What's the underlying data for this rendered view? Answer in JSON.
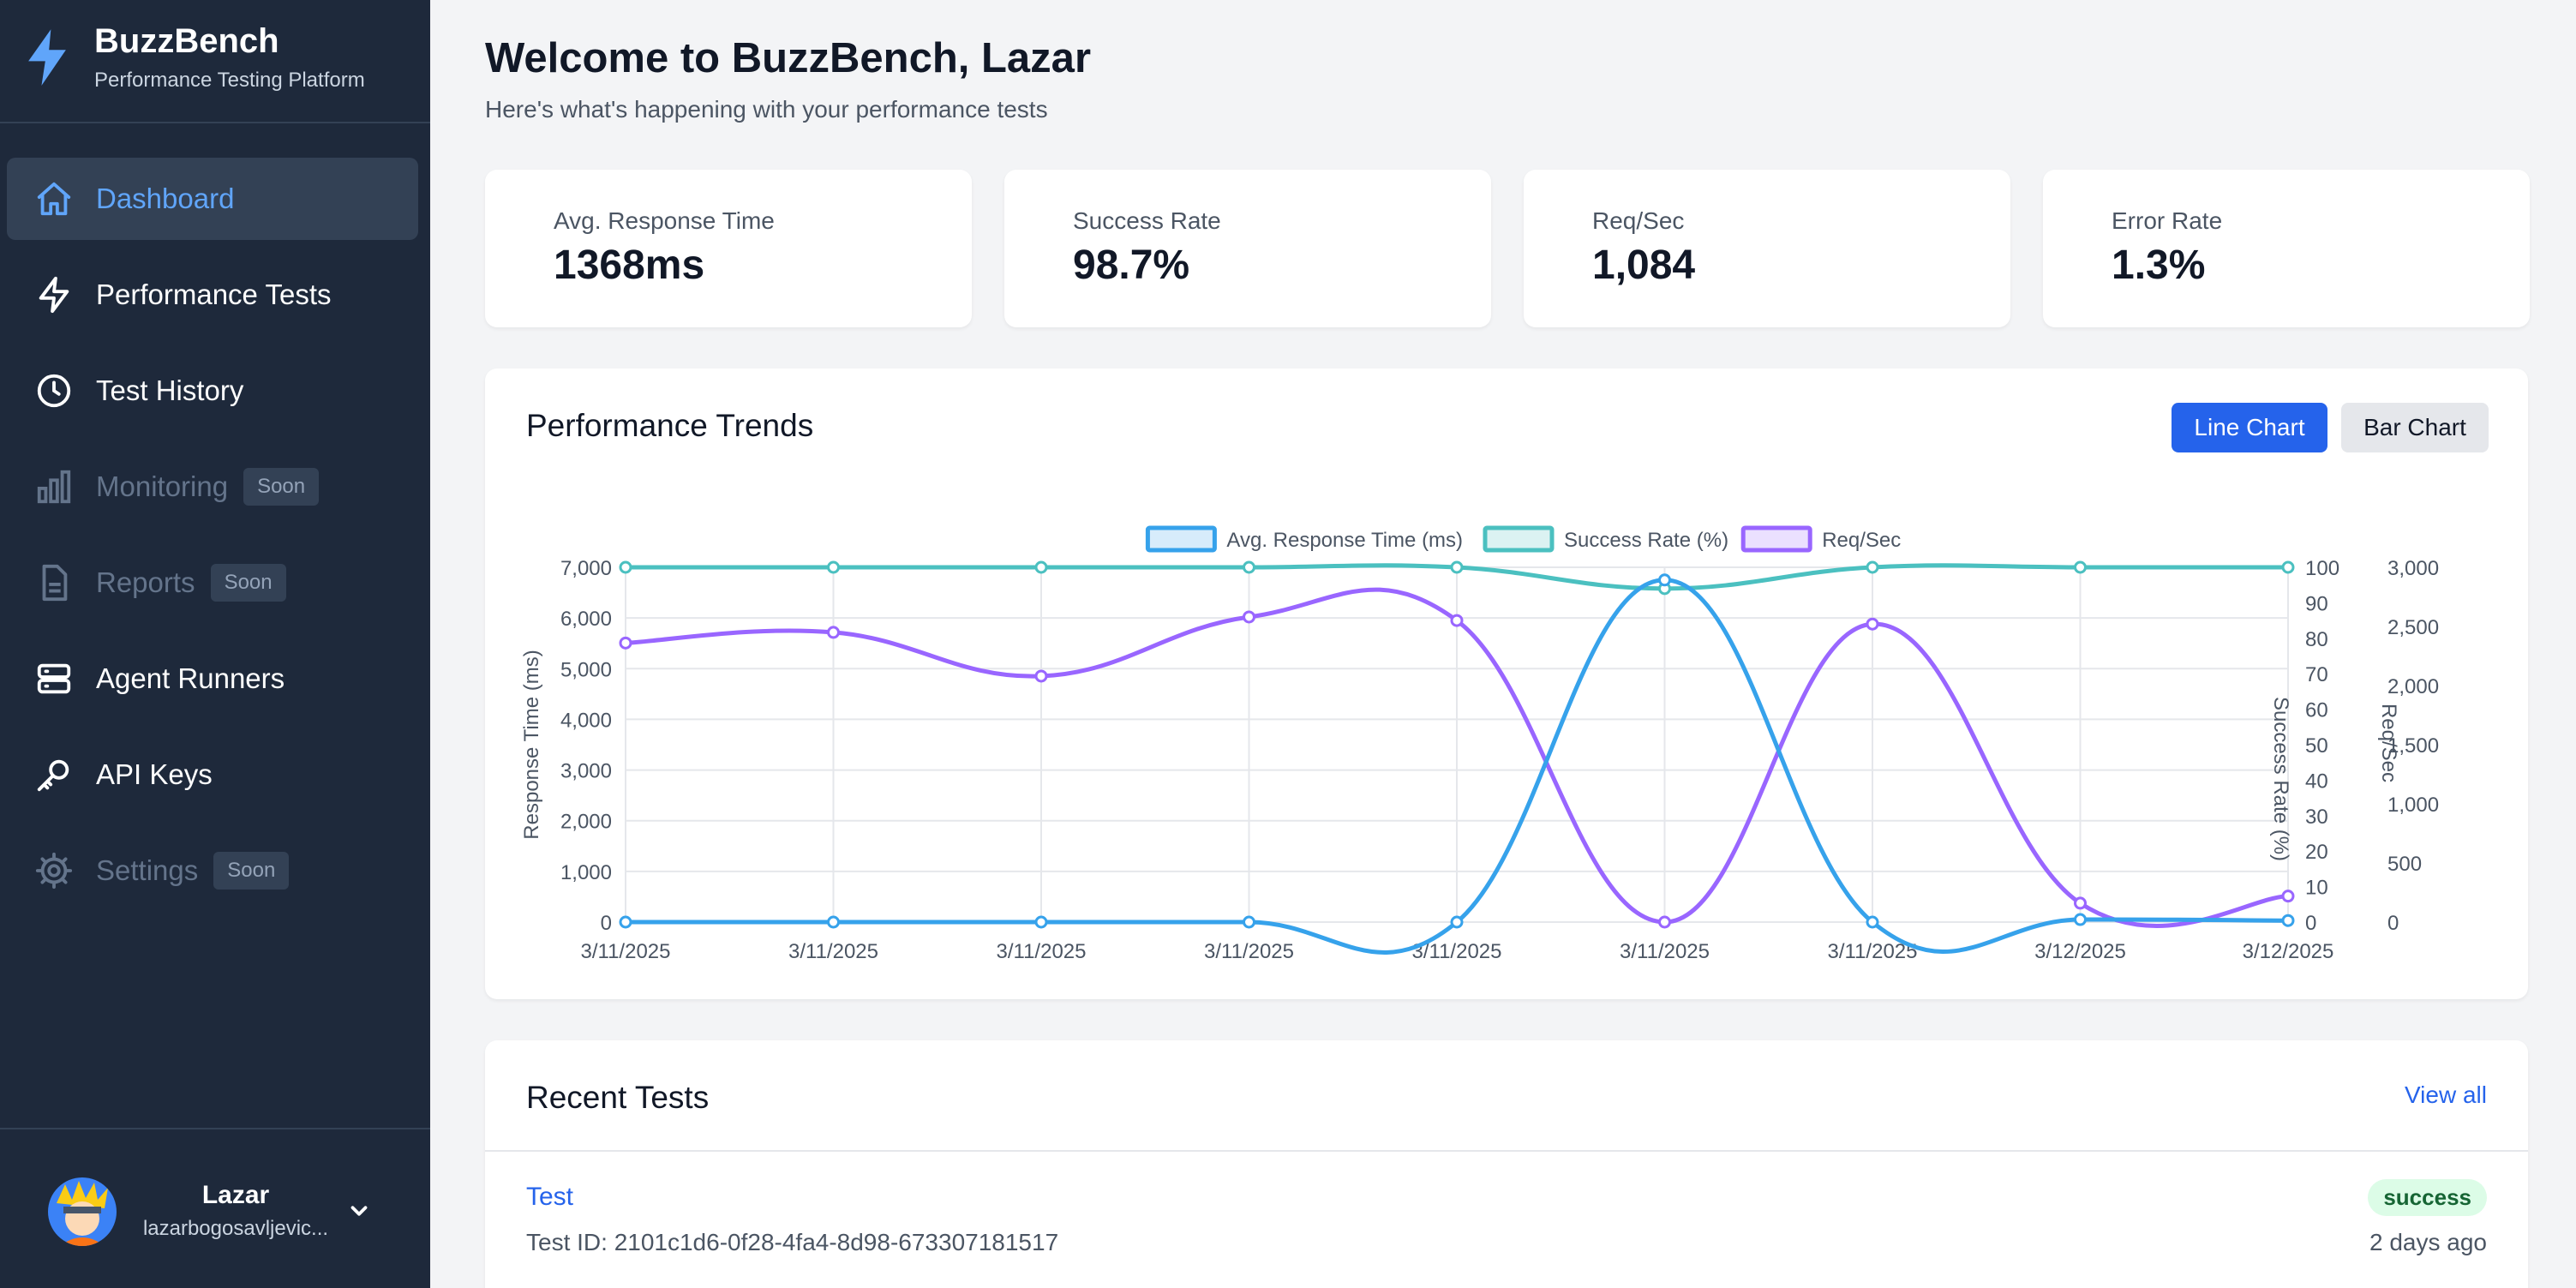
{
  "brand": {
    "title": "BuzzBench",
    "subtitle": "Performance Testing Platform"
  },
  "sidebar": {
    "items": [
      {
        "label": "Dashboard",
        "icon": "home-icon",
        "active": true
      },
      {
        "label": "Performance Tests",
        "icon": "lightning-icon"
      },
      {
        "label": "Test History",
        "icon": "clock-icon"
      },
      {
        "label": "Monitoring",
        "icon": "bar-chart-icon",
        "badge": "Soon"
      },
      {
        "label": "Reports",
        "icon": "document-icon",
        "badge": "Soon"
      },
      {
        "label": "Agent Runners",
        "icon": "server-icon"
      },
      {
        "label": "API Keys",
        "icon": "key-icon"
      },
      {
        "label": "Settings",
        "icon": "gear-icon",
        "badge": "Soon"
      }
    ]
  },
  "user": {
    "name": "Lazar",
    "email": "lazarbogosavljevic..."
  },
  "header": {
    "title": "Welcome to BuzzBench, Lazar",
    "subtitle": "Here's what's happening with your performance tests"
  },
  "stats": [
    {
      "label": "Avg. Response Time",
      "value": "1368ms"
    },
    {
      "label": "Success Rate",
      "value": "98.7%"
    },
    {
      "label": "Req/Sec",
      "value": "1,084"
    },
    {
      "label": "Error Rate",
      "value": "1.3%"
    }
  ],
  "trends": {
    "title": "Performance Trends",
    "line_label": "Line Chart",
    "bar_label": "Bar Chart"
  },
  "chart_data": {
    "type": "line",
    "x": [
      "3/11/2025",
      "3/11/2025",
      "3/11/2025",
      "3/11/2025",
      "3/11/2025",
      "3/11/2025",
      "3/11/2025",
      "3/12/2025",
      "3/12/2025"
    ],
    "series": [
      {
        "name": "Avg. Response Time (ms)",
        "axis": "left",
        "color": "#36a2eb",
        "values": [
          0,
          0,
          0,
          0,
          0,
          6750,
          0,
          50,
          30
        ]
      },
      {
        "name": "Success Rate (%)",
        "axis": "right1",
        "color": "#4bc0c0",
        "values": [
          100,
          100,
          100,
          100,
          100,
          94,
          100,
          100,
          100
        ]
      },
      {
        "name": "Req/Sec",
        "axis": "right2",
        "color": "#9966ff",
        "values": [
          2360,
          2450,
          2080,
          2580,
          2550,
          0,
          2520,
          160,
          220
        ]
      }
    ],
    "axes": {
      "left": {
        "label": "Response Time (ms)",
        "min": 0,
        "max": 7000,
        "ticks": [
          "0",
          "1,000",
          "2,000",
          "3,000",
          "4,000",
          "5,000",
          "6,000",
          "7,000"
        ]
      },
      "right1": {
        "label": "Success Rate (%)",
        "min": 0,
        "max": 100,
        "ticks": [
          "0",
          "10",
          "20",
          "30",
          "40",
          "50",
          "60",
          "70",
          "80",
          "90",
          "100"
        ]
      },
      "right2": {
        "label": "Req/Sec",
        "min": 0,
        "max": 3000,
        "ticks": [
          "0",
          "500",
          "1,000",
          "1,500",
          "2,000",
          "2,500",
          "3,000"
        ]
      }
    },
    "legend": "top",
    "grid": true
  },
  "recent": {
    "title": "Recent Tests",
    "view_all": "View all",
    "tests": [
      {
        "name": "Test",
        "id": "Test ID: 2101c1d6-0f28-4fa4-8d98-673307181517",
        "status": "success",
        "when": "2 days ago"
      }
    ]
  }
}
